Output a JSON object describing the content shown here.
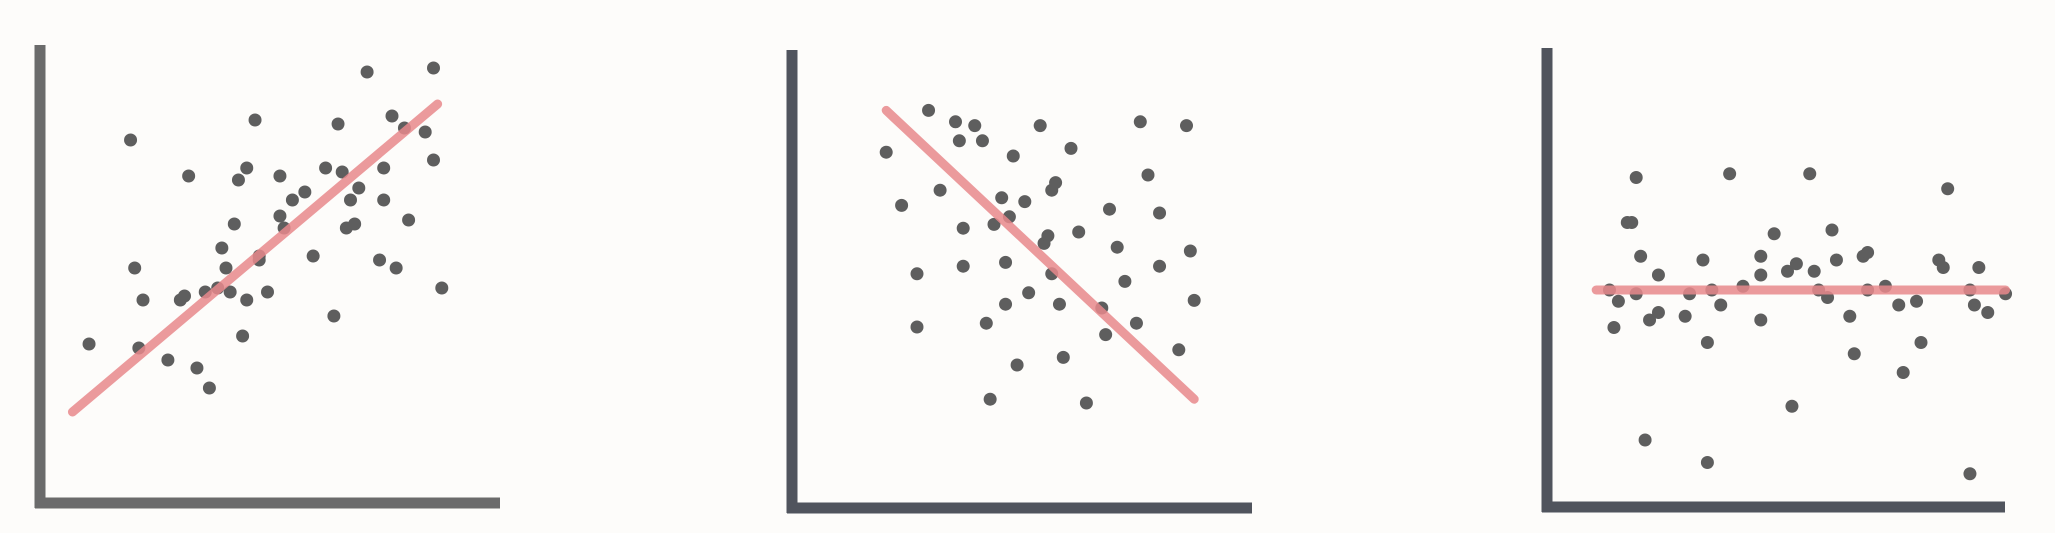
{
  "chart_data": [
    {
      "type": "scatter",
      "title": "",
      "xlabel": "",
      "ylabel": "",
      "xlim": [
        0,
        100
      ],
      "ylim": [
        0,
        100
      ],
      "grid": false,
      "ticks": false,
      "axis_color": "#6b6b6b",
      "point_color": "#5e5e5e",
      "trend_color": "#e8898c",
      "trend": {
        "x": [
          3,
          91
        ],
        "y": [
          12,
          89
        ]
      },
      "x": [
        7,
        17,
        18,
        19,
        20,
        26,
        29,
        30,
        31,
        33,
        35,
        36,
        38,
        39,
        40,
        41,
        42,
        43,
        44,
        45,
        45,
        47,
        48,
        48,
        50,
        53,
        53,
        54,
        56,
        59,
        61,
        64,
        66,
        67,
        68,
        69,
        70,
        71,
        72,
        74,
        77,
        78,
        78,
        80,
        81,
        83,
        84,
        88,
        90,
        90,
        92
      ],
      "y": [
        29,
        80,
        48,
        28,
        40,
        25,
        40,
        41,
        71,
        23,
        42,
        18,
        43,
        53,
        48,
        42,
        59,
        70,
        31,
        40,
        73,
        85,
        50,
        51,
        42,
        61,
        71,
        58,
        65,
        67,
        51,
        73,
        36,
        84,
        72,
        58,
        65,
        59,
        68,
        97,
        50,
        73,
        65,
        86,
        48,
        83,
        60,
        82,
        98,
        75,
        43
      ]
    },
    {
      "type": "scatter",
      "title": "",
      "xlabel": "",
      "ylabel": "",
      "xlim": [
        0,
        100
      ],
      "ylim": [
        0,
        100
      ],
      "grid": false,
      "ticks": false,
      "axis_color": "#50545d",
      "point_color": "#5e5e5e",
      "trend_color": "#e8898c",
      "trend": {
        "x": [
          12,
          92
        ],
        "y": [
          92,
          16
        ]
      },
      "x": [
        12,
        16,
        20,
        20,
        23,
        26,
        30,
        31,
        32,
        32,
        35,
        37,
        38,
        39,
        40,
        42,
        43,
        43,
        44,
        45,
        46,
        48,
        49,
        52,
        53,
        54,
        55,
        55,
        56,
        57,
        58,
        60,
        62,
        64,
        68,
        69,
        70,
        72,
        74,
        77,
        78,
        80,
        83,
        83,
        88,
        90,
        91,
        92
      ],
      "y": [
        81,
        67,
        49,
        35,
        92,
        71,
        89,
        84,
        61,
        51,
        88,
        84,
        36,
        16,
        62,
        69,
        52,
        41,
        64,
        80,
        25,
        68,
        44,
        88,
        57,
        59,
        49,
        71,
        73,
        41,
        27,
        82,
        60,
        15,
        40,
        33,
        66,
        56,
        47,
        36,
        89,
        75,
        51,
        65,
        29,
        88,
        55,
        42
      ]
    },
    {
      "type": "scatter",
      "title": "",
      "xlabel": "",
      "ylabel": "",
      "xlim": [
        0,
        100
      ],
      "ylim": [
        0,
        100
      ],
      "grid": false,
      "ticks": false,
      "axis_color": "#50545d",
      "point_color": "#5e5e5e",
      "trend_color": "#e8898c",
      "trend": {
        "x": [
          7,
          99
        ],
        "y": [
          52,
          52
        ]
      },
      "x": [
        10,
        11,
        12,
        14,
        15,
        16,
        16,
        17,
        18,
        19,
        21,
        21,
        27,
        28,
        31,
        32,
        32,
        33,
        35,
        37,
        40,
        44,
        44,
        44,
        47,
        50,
        51,
        52,
        55,
        56,
        57,
        59,
        60,
        61,
        64,
        65,
        67,
        68,
        68,
        72,
        75,
        76,
        79,
        80,
        84,
        85,
        86,
        91,
        91,
        92,
        93,
        95,
        99
      ],
      "y": [
        52,
        42,
        49,
        70,
        70,
        82,
        51,
        61,
        12,
        44,
        56,
        46,
        45,
        51,
        60,
        38,
        6,
        52,
        48,
        83,
        53,
        56,
        44,
        61,
        67,
        57,
        21,
        59,
        83,
        57,
        52,
        50,
        68,
        60,
        45,
        35,
        61,
        52,
        62,
        53,
        48,
        30,
        49,
        38,
        60,
        58,
        79,
        52,
        3,
        48,
        58,
        46,
        51
      ]
    }
  ]
}
